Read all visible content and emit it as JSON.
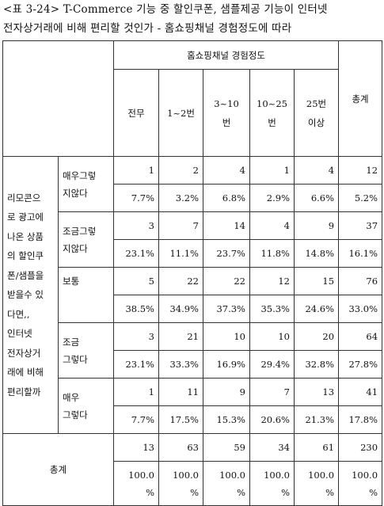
{
  "caption": {
    "line1": "<표 3-24> T-Commerce 기능 중 할인쿠폰, 샘플제공 기능이 인터넷",
    "line2": "전자상거래에 비해 편리할 것인가 - 홈쇼핑채널 경험정도에 따라"
  },
  "table": {
    "group_header": "홈쇼핑채널 경험정도",
    "total_header": "총계",
    "columns": [
      {
        "line1": "전무",
        "line2": ""
      },
      {
        "line1": "1~2번",
        "line2": ""
      },
      {
        "line1": "3~10",
        "line2": "번"
      },
      {
        "line1": "10~25",
        "line2": "번"
      },
      {
        "line1": "25번",
        "line2": "이상"
      }
    ],
    "question_lines": [
      "리모콘으",
      "로 광고에",
      "나온 상품",
      "의 할인쿠",
      "폰/샘플을",
      "받을수 있",
      "다면,,",
      "인터넷",
      "전자상거",
      "래에 비해",
      "편리할까"
    ],
    "rows": [
      {
        "label1": "매우그렇",
        "label2": "지않다",
        "counts": [
          "1",
          "2",
          "4",
          "1",
          "4"
        ],
        "total": "12",
        "pcts": [
          "7.7%",
          "3.2%",
          "6.8%",
          "2.9%",
          "6.6%"
        ],
        "total_pct": "5.2%"
      },
      {
        "label1": "조금그렇",
        "label2": "지않다",
        "counts": [
          "3",
          "7",
          "14",
          "4",
          "9"
        ],
        "total": "37",
        "pcts": [
          "23.1%",
          "11.1%",
          "23.7%",
          "11.8%",
          "14.8%"
        ],
        "total_pct": "16.1%"
      },
      {
        "label1": "보통",
        "label2": "",
        "counts": [
          "5",
          "22",
          "22",
          "12",
          "15"
        ],
        "total": "76",
        "pcts": [
          "38.5%",
          "34.9%",
          "37.3%",
          "35.3%",
          "24.6%"
        ],
        "total_pct": "33.0%"
      },
      {
        "label1": "조금",
        "label2": "그렇다",
        "counts": [
          "3",
          "21",
          "10",
          "10",
          "20"
        ],
        "total": "64",
        "pcts": [
          "23.1%",
          "33.3%",
          "16.9%",
          "29.4%",
          "32.8%"
        ],
        "total_pct": "27.8%"
      },
      {
        "label1": "매우",
        "label2": "그렇다",
        "counts": [
          "1",
          "11",
          "9",
          "7",
          "13"
        ],
        "total": "41",
        "pcts": [
          "7.7%",
          "17.5%",
          "15.3%",
          "20.6%",
          "21.3%"
        ],
        "total_pct": "17.8%"
      }
    ],
    "total_row": {
      "label": "총계",
      "counts": [
        "13",
        "63",
        "59",
        "34",
        "61"
      ],
      "total": "230",
      "pct_value": "100.0",
      "pct_sign": "%"
    }
  }
}
